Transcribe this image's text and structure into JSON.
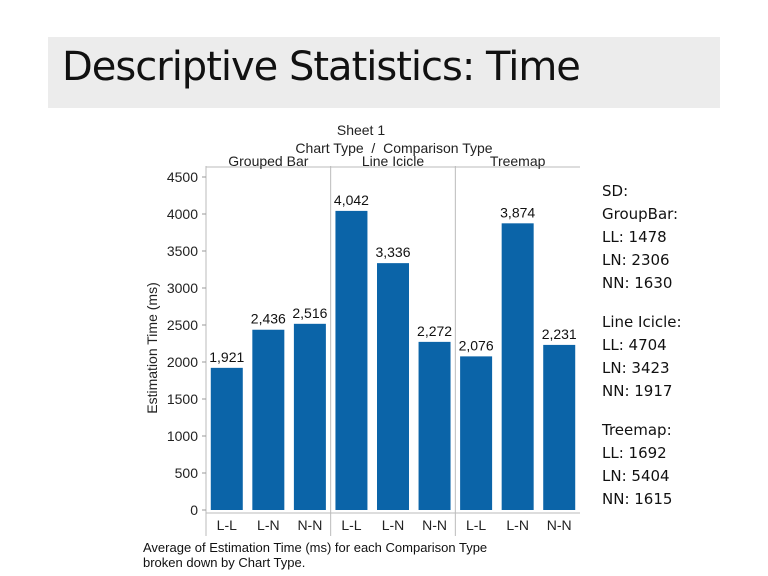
{
  "slide": {
    "title": "Descriptive Statistics: Time"
  },
  "chart_data": {
    "type": "bar",
    "title": "Sheet 1",
    "subtitle": "Chart Type  /  Comparison Type",
    "ylabel": "Estimation Time (ms)",
    "ylim": [
      0,
      4500
    ],
    "yticks": [
      0,
      500,
      1000,
      1500,
      2000,
      2500,
      3000,
      3500,
      4000,
      4500
    ],
    "bar_color": "#0b64a8",
    "groups": [
      {
        "name": "Grouped Bar",
        "categories": [
          "L-L",
          "L-N",
          "N-N"
        ],
        "values": [
          1921,
          2436,
          2516
        ],
        "labels": [
          "1,921",
          "2,436",
          "2,516"
        ]
      },
      {
        "name": "Line Icicle",
        "categories": [
          "L-L",
          "L-N",
          "N-N"
        ],
        "values": [
          4042,
          3336,
          2272
        ],
        "labels": [
          "4,042",
          "3,336",
          "2,272"
        ]
      },
      {
        "name": "Treemap",
        "categories": [
          "L-L",
          "L-N",
          "N-N"
        ],
        "values": [
          2076,
          3874,
          2231
        ],
        "labels": [
          "2,076",
          "3,874",
          "2,231"
        ]
      }
    ],
    "caption_line1": "Average of Estimation Time (ms) for each Comparison Type",
    "caption_line2": "broken down by Chart Type."
  },
  "stats": {
    "sd_label": "SD:",
    "groupbar": {
      "heading": "GroupBar:",
      "ll": "LL: 1478",
      "ln": "LN: 2306",
      "nn": "NN: 1630"
    },
    "lineicicle": {
      "heading": "Line Icicle:",
      "ll": "LL: 4704",
      "ln": "LN: 3423",
      "nn": "NN: 1917"
    },
    "treemap": {
      "heading": "Treemap:",
      "ll": "LL: 1692",
      "ln": "LN: 5404",
      "nn": "NN: 1615"
    }
  }
}
